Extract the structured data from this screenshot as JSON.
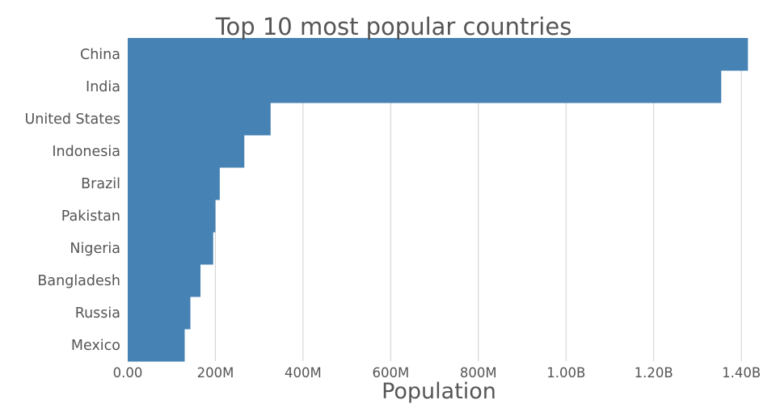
{
  "chart_data": {
    "type": "bar",
    "orientation": "horizontal",
    "title": "Top 10 most popular countries",
    "xlabel": "Population",
    "ylabel": "",
    "categories": [
      "China",
      "India",
      "United States",
      "Indonesia",
      "Brazil",
      "Pakistan",
      "Nigeria",
      "Bangladesh",
      "Russia",
      "Mexico"
    ],
    "values": [
      1415000000,
      1354000000,
      326000000,
      266000000,
      210000000,
      200000000,
      195000000,
      166000000,
      143000000,
      130000000
    ],
    "xlim": [
      0,
      1420000000
    ],
    "xticks": [
      0,
      200000000,
      400000000,
      600000000,
      800000000,
      1000000000,
      1200000000,
      1400000000
    ],
    "xtick_labels": [
      "0.00",
      "200M",
      "400M",
      "600M",
      "800M",
      "1.00B",
      "1.20B",
      "1.40B"
    ],
    "grid": true,
    "legend": "none",
    "bar_color": "#4682b4"
  }
}
